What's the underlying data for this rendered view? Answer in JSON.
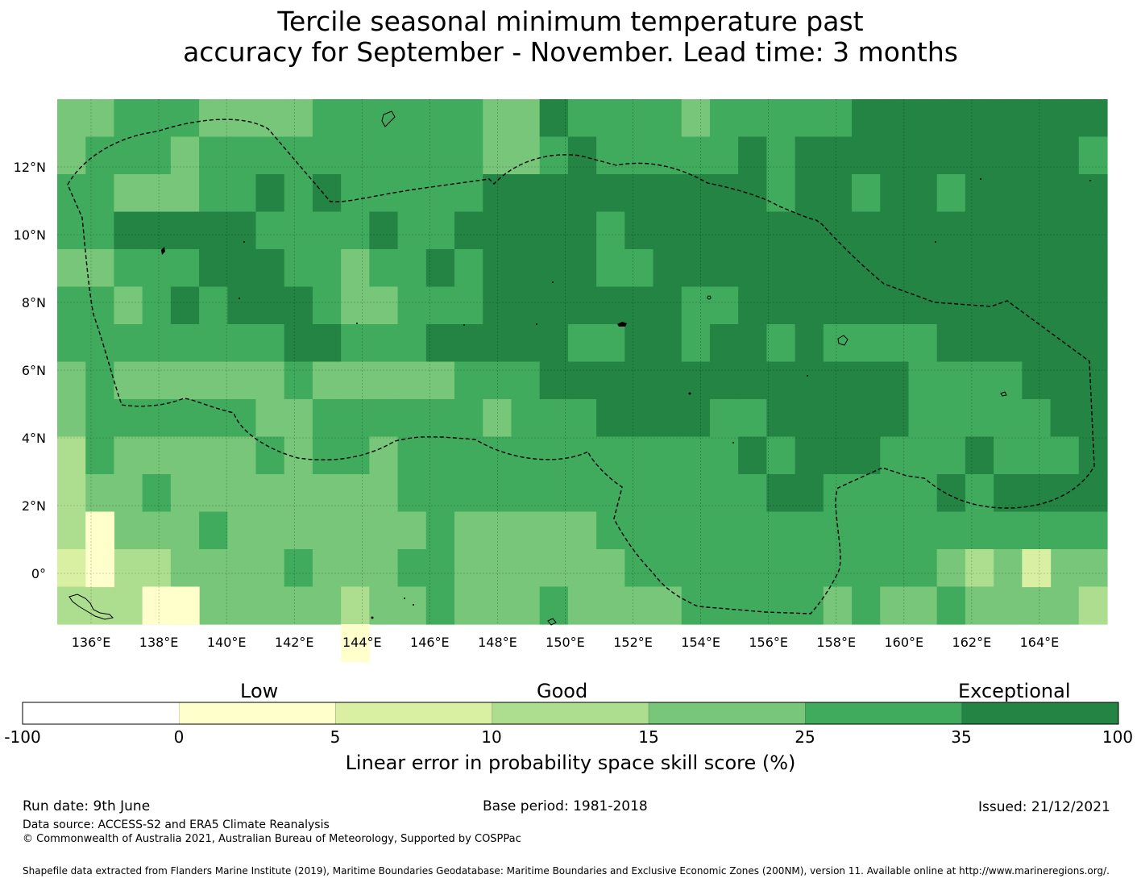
{
  "title": {
    "line1": "Tercile seasonal minimum temperature past",
    "line2": "accuracy for September - November. Lead time: 3 months"
  },
  "map": {
    "x_ticks": [
      "136°E",
      "138°E",
      "140°E",
      "142°E",
      "144°E",
      "146°E",
      "148°E",
      "150°E",
      "152°E",
      "154°E",
      "156°E",
      "158°E",
      "160°E",
      "162°E",
      "164°E"
    ],
    "y_ticks": [
      "12°N",
      "10°N",
      "8°N",
      "6°N",
      "4°N",
      "2°N",
      "0°"
    ],
    "lon_range": [
      135,
      166
    ],
    "lat_range": [
      -1.5,
      14
    ]
  },
  "legend": {
    "categories": [
      "Low",
      "Good",
      "Exceptional"
    ],
    "bounds": [
      "-100",
      "0",
      "5",
      "10",
      "15",
      "25",
      "35",
      "100"
    ],
    "colors": [
      "#ffffff",
      "#ffffcc",
      "#d9f0a3",
      "#addd8e",
      "#78c679",
      "#41ab5d",
      "#238443"
    ],
    "label": "Linear error in probability space skill score (%)"
  },
  "footer": {
    "run_date": "Run date: 9th June",
    "base_period": "Base period: 1981-2018",
    "issued": "Issued: 21/12/2021",
    "data_source": "Data source: ACCESS-S2 and ERA5 Climate Reanalysis",
    "copyright": "© Commonwealth of Australia 2021, Australian Bureau of Meteorology, Supported by COSPPac",
    "shapefile": "Shapefile data extracted from Flanders Marine Institute (2019), Maritime Boundaries Geodatabase: Maritime Boundaries and Exclusive Economic Zones (200NM), version 11. Available online at http://www.marineregions.org/."
  }
}
